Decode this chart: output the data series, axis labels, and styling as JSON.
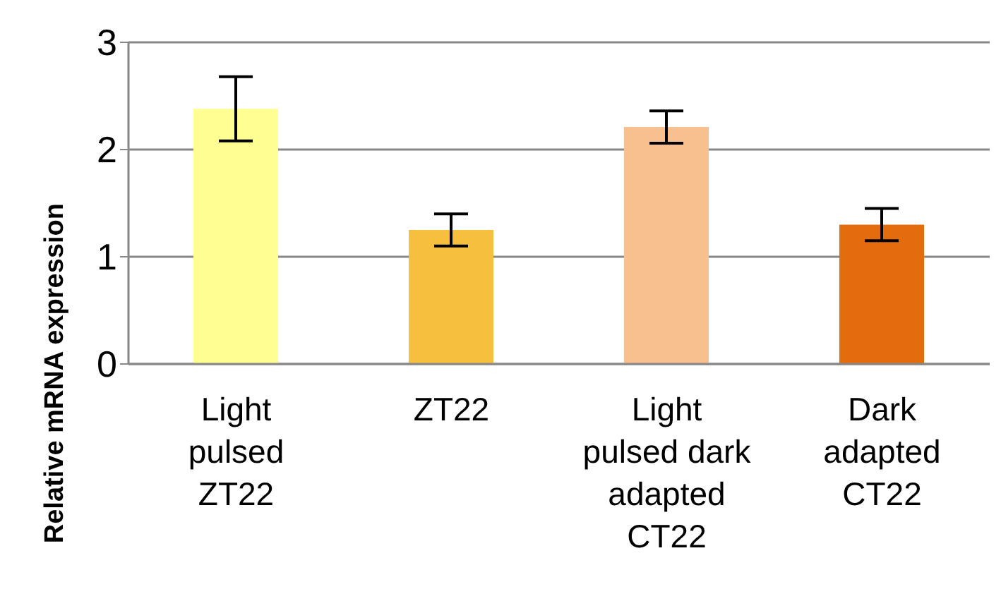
{
  "chart_data": {
    "type": "bar",
    "ylabel": "Relative mRNA expression",
    "categories": [
      "Light pulsed ZT22",
      "ZT22",
      "Light pulsed dark adapted CT22",
      "Dark adapted CT22"
    ],
    "values": [
      2.38,
      1.25,
      2.21,
      1.3
    ],
    "errors": [
      0.3,
      0.15,
      0.15,
      0.15
    ],
    "colors": [
      "#fefe92",
      "#f6c03e",
      "#f8bf8f",
      "#e36c0c"
    ],
    "ylim": [
      0,
      3
    ],
    "yticks": [
      0,
      1,
      2,
      3
    ],
    "grid": "y",
    "legend": false
  }
}
